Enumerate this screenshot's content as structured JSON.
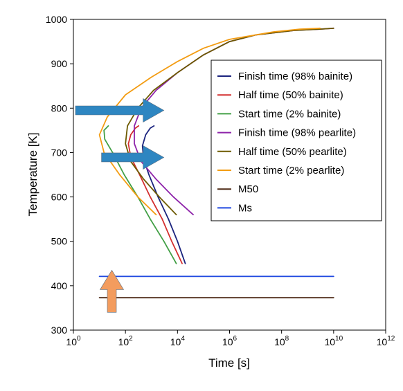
{
  "chart_data": {
    "type": "line",
    "xlabel": "Time [s]",
    "ylabel": "Temperature [K]",
    "xscale": "log",
    "xlim": [
      1,
      1000000000000
    ],
    "ylim": [
      300,
      1000
    ],
    "x_tick_labels": [
      {
        "base": "10",
        "exp": "0",
        "value": 1
      },
      {
        "base": "10",
        "exp": "2",
        "value": 100
      },
      {
        "base": "10",
        "exp": "4",
        "value": 10000
      },
      {
        "base": "10",
        "exp": "6",
        "value": 1000000
      },
      {
        "base": "10",
        "exp": "8",
        "value": 100000000
      },
      {
        "base": "10",
        "exp": "10",
        "value": 10000000000
      },
      {
        "base": "10",
        "exp": "12",
        "value": 1000000000000
      }
    ],
    "y_ticks": [
      300,
      400,
      500,
      600,
      700,
      800,
      900,
      1000
    ],
    "grid": false,
    "legend_position": "upper-right",
    "series": [
      {
        "name": "Finish time (98% bainite)",
        "color": "#1a237e",
        "points": [
          [
            1250,
            760
          ],
          [
            900,
            755
          ],
          [
            600,
            740
          ],
          [
            450,
            715
          ],
          [
            500,
            685
          ],
          [
            800,
            650
          ],
          [
            1800,
            600
          ],
          [
            4500,
            550
          ],
          [
            10000,
            500
          ],
          [
            20000,
            450
          ]
        ]
      },
      {
        "name": "Half time (50% bainite)",
        "color": "#d32f2f",
        "points": [
          [
            320,
            760
          ],
          [
            240,
            755
          ],
          [
            160,
            740
          ],
          [
            130,
            720
          ],
          [
            160,
            690
          ],
          [
            350,
            650
          ],
          [
            900,
            600
          ],
          [
            2600,
            550
          ],
          [
            6000,
            500
          ],
          [
            15000,
            450
          ]
        ]
      },
      {
        "name": "Start time (2% bainite)",
        "color": "#43a047",
        "points": [
          [
            22,
            760
          ],
          [
            15,
            750
          ],
          [
            16,
            730
          ],
          [
            32,
            700
          ],
          [
            90,
            650
          ],
          [
            300,
            600
          ],
          [
            900,
            550
          ],
          [
            3000,
            500
          ],
          [
            9000,
            450
          ]
        ]
      },
      {
        "name": "Finish time (98% pearlite)",
        "color": "#8e24aa",
        "points": [
          [
            10000000000,
            980
          ],
          [
            3000000000,
            978
          ],
          [
            300000000,
            975
          ],
          [
            10000000,
            965
          ],
          [
            1000000,
            950
          ],
          [
            100000,
            920
          ],
          [
            10000,
            880
          ],
          [
            1500,
            840
          ],
          [
            400,
            800
          ],
          [
            220,
            760
          ],
          [
            220,
            720
          ],
          [
            400,
            680
          ],
          [
            1500,
            640
          ],
          [
            7000,
            600
          ],
          [
            40000,
            560
          ]
        ]
      },
      {
        "name": "Half time (50% pearlite)",
        "color": "#6d5a00",
        "points": [
          [
            10000000000,
            980
          ],
          [
            3000000000,
            978
          ],
          [
            300000000,
            975
          ],
          [
            10000000,
            965
          ],
          [
            1000000,
            950
          ],
          [
            100000,
            920
          ],
          [
            10000,
            880
          ],
          [
            1200,
            840
          ],
          [
            300,
            800
          ],
          [
            120,
            760
          ],
          [
            100,
            720
          ],
          [
            160,
            680
          ],
          [
            500,
            640
          ],
          [
            2000,
            600
          ],
          [
            9000,
            560
          ]
        ]
      },
      {
        "name": "Start time (2% pearlite)",
        "color": "#f39c12",
        "points": [
          [
            3000000000,
            980
          ],
          [
            500000000,
            978
          ],
          [
            50000000,
            972
          ],
          [
            1000000,
            955
          ],
          [
            100000,
            935
          ],
          [
            10000,
            905
          ],
          [
            1000,
            870
          ],
          [
            100,
            830
          ],
          [
            20,
            780
          ],
          [
            10,
            740
          ],
          [
            15,
            700
          ],
          [
            60,
            650
          ],
          [
            300,
            600
          ],
          [
            1500,
            560
          ]
        ]
      },
      {
        "name": "M50",
        "color": "#4e2a16",
        "points": [
          [
            10,
            373
          ],
          [
            10000000000,
            373
          ]
        ]
      },
      {
        "name": "Ms",
        "color": "#1e47e0",
        "points": [
          [
            10,
            421
          ],
          [
            10000000000,
            421
          ]
        ]
      }
    ],
    "annotations": [
      {
        "kind": "arrow",
        "direction": "right",
        "color": "#2e86c1",
        "from": [
          1.2,
          795
        ],
        "to": [
          3000,
          795
        ]
      },
      {
        "kind": "arrow",
        "direction": "right",
        "color": "#2e86c1",
        "from": [
          12,
          689
        ],
        "to": [
          3000,
          689
        ]
      },
      {
        "kind": "arrow",
        "direction": "up",
        "color": "#f39c5e",
        "from": [
          30,
          340
        ],
        "to": [
          30,
          435
        ]
      }
    ]
  }
}
